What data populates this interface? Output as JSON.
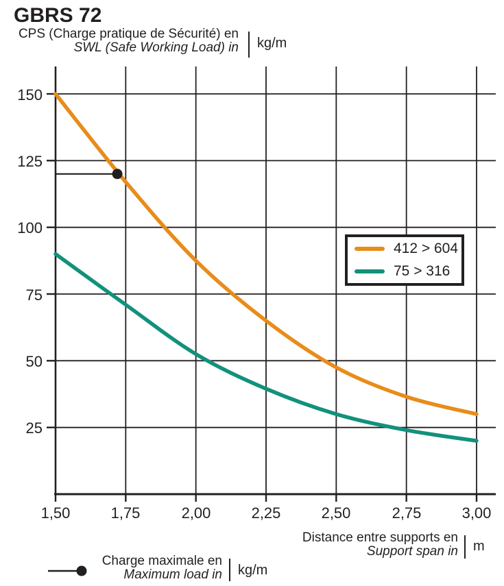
{
  "header": {
    "title": "GBRS 72",
    "y_axis_label_fr": "CPS (Charge pratique de Sécurité) en",
    "y_axis_label_en": "SWL (Safe Working Load) in",
    "y_axis_unit": "kg/m"
  },
  "footer": {
    "x_axis_label_fr": "Distance entre supports en",
    "x_axis_label_en": "Support span in",
    "x_axis_unit": "m",
    "max_load_label_fr": "Charge maximale en",
    "max_load_label_en": "Maximum load in",
    "max_load_unit": "kg/m"
  },
  "legend": {
    "items": [
      {
        "label": "412 > 604",
        "color": "#E88C1A"
      },
      {
        "label": "75 > 316",
        "color": "#12917C"
      }
    ]
  },
  "colors": {
    "ink": "#231F20",
    "series_412_604": "#E88C1A",
    "series_75_316": "#12917C"
  },
  "chart_data": {
    "type": "line",
    "title": "GBRS 72",
    "xlabel": "Distance entre supports en / Support span in (m)",
    "ylabel": "CPS (Charge pratique de Sécurité) / SWL (Safe Working Load) (kg/m)",
    "x": [
      1.5,
      1.75,
      2.0,
      2.25,
      2.5,
      2.75,
      3.0
    ],
    "series": [
      {
        "name": "412 > 604",
        "color": "#E88C1A",
        "values": [
          150,
          117,
          87.5,
          65,
          47.5,
          36.5,
          30
        ]
      },
      {
        "name": "75 > 316",
        "color": "#12917C",
        "values": [
          90,
          71,
          52.5,
          39.5,
          30,
          24,
          20
        ]
      }
    ],
    "x_ticks": [
      1.5,
      1.75,
      2.0,
      2.25,
      2.5,
      2.75,
      3.0
    ],
    "x_tick_labels": [
      "1,50",
      "1,75",
      "2,00",
      "2,25",
      "2,50",
      "2,75",
      "3,00"
    ],
    "y_ticks": [
      25,
      50,
      75,
      100,
      125,
      150
    ],
    "y_tick_labels": [
      "25",
      "50",
      "75",
      "100",
      "125",
      "150"
    ],
    "xlim": [
      1.5,
      3.07
    ],
    "ylim": [
      0,
      160
    ],
    "grid": true,
    "legend_position": "upper-right-box",
    "annotation": {
      "name": "max-load-marker",
      "x": 1.72,
      "y": 120
    }
  }
}
